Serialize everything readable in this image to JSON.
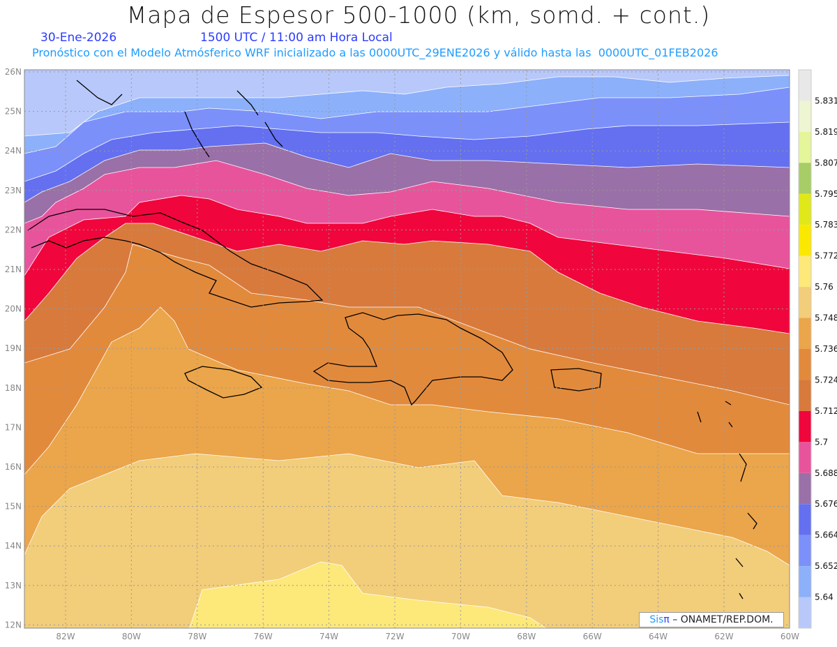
{
  "header": {
    "title": "Mapa de Espesor 500-1000 (km, somd. + cont.)",
    "date": "30-Ene-2026",
    "time": "1500 UTC / 11:00 am Hora Local",
    "forecast": "Pronóstico con el Modelo Atmósferico WRF inicializado a las 0000UTC_29ENE2026 y válido hasta las  0000UTC_01FEB2026"
  },
  "axes": {
    "lon_labels": [
      "82W",
      "80W",
      "78W",
      "76W",
      "74W",
      "72W",
      "70W",
      "68W",
      "66W",
      "64W",
      "62W",
      "60W"
    ],
    "lat_labels": [
      "26N",
      "25N",
      "24N",
      "23N",
      "22N",
      "21N",
      "20N",
      "19N",
      "18N",
      "17N",
      "16N",
      "15N",
      "14N",
      "13N",
      "12N"
    ]
  },
  "colorbar": {
    "labels": [
      "5.831",
      "5.819",
      "5.807",
      "5.795",
      "5.783",
      "5.772",
      "5.76",
      "5.748",
      "5.736",
      "5.724",
      "5.712",
      "5.7",
      "5.688",
      "5.676",
      "5.664",
      "5.652",
      "5.64"
    ],
    "colors": [
      "#e8e8e8",
      "#eef5d2",
      "#e4f59a",
      "#a8cc66",
      "#e0e81a",
      "#fbe800",
      "#fde87a",
      "#f2cd7a",
      "#eba54a",
      "#e28a3c",
      "#d87a3c",
      "#f0063c",
      "#e8549c",
      "#9a70a8",
      "#6470f0",
      "#7c90fa",
      "#8cb0fa",
      "#b8c8fa"
    ]
  },
  "credit": {
    "sis": "Sis",
    "pi": "π",
    "rest": " – ONAMET/REP.DOM."
  }
}
